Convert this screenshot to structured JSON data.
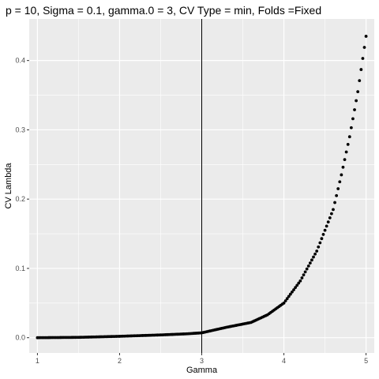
{
  "chart_data": {
    "type": "scatter",
    "title": "p = 10, Sigma = 0.1, gamma.0 = 3, CV Type = min, Folds =Fixed",
    "xlabel": "Gamma",
    "ylabel": "CV Lambda",
    "xlim": [
      0.9,
      5.1
    ],
    "ylim": [
      -0.022,
      0.46
    ],
    "x_ticks": [
      1,
      2,
      3,
      4,
      5
    ],
    "x_tick_labels": [
      "1",
      "2",
      "3",
      "4",
      "5"
    ],
    "y_ticks": [
      0.0,
      0.1,
      0.2,
      0.3,
      0.4
    ],
    "y_tick_labels": [
      "0.0",
      "0.1",
      "0.2",
      "0.3",
      "0.4"
    ],
    "vline_x": 3,
    "grid": true,
    "legend": "none",
    "colors": {
      "panel": "#ebebeb",
      "grid_major": "#ffffff",
      "point": "#000000",
      "vline": "#000000",
      "tick": "#333333"
    },
    "curve_knots": {
      "x": [
        1.0,
        1.5,
        2.0,
        2.5,
        2.8,
        3.0,
        3.3,
        3.6,
        3.8,
        4.0,
        4.2,
        4.4,
        4.6,
        4.7,
        4.8,
        4.9,
        5.0
      ],
      "y": [
        0.0,
        0.0005,
        0.002,
        0.004,
        0.0055,
        0.007,
        0.015,
        0.022,
        0.033,
        0.05,
        0.082,
        0.125,
        0.185,
        0.235,
        0.29,
        0.355,
        0.435
      ]
    },
    "x_start": 1.0,
    "x_end": 5.0,
    "x_step": 0.02
  }
}
